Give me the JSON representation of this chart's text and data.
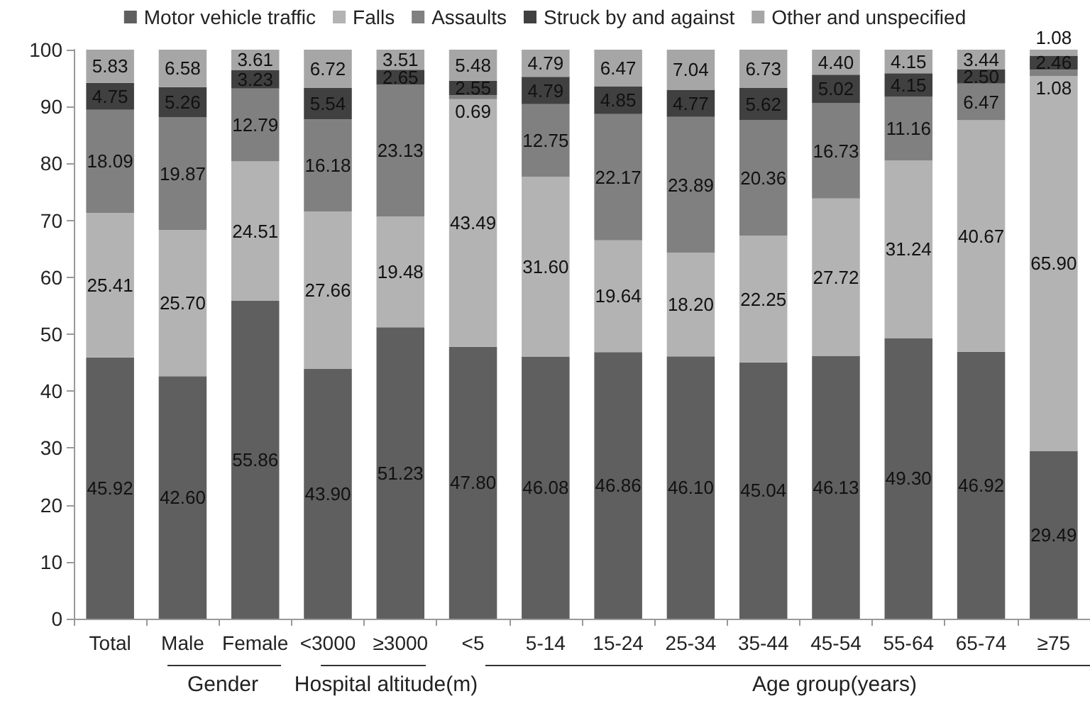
{
  "chart_data": {
    "type": "bar",
    "stacked": true,
    "categories": [
      "Total",
      "Male",
      "Female",
      "<3000",
      "≥3000",
      "<5",
      "5-14",
      "15-24",
      "25-34",
      "35-44",
      "45-54",
      "55-64",
      "65-74",
      "≥75"
    ],
    "series": [
      {
        "name": "Motor vehicle traffic",
        "color": "#5f5f5f",
        "values": [
          45.92,
          42.6,
          55.86,
          43.9,
          51.23,
          47.8,
          46.08,
          46.86,
          46.1,
          45.04,
          46.13,
          49.3,
          46.92,
          29.49
        ],
        "value_labels": [
          "45.92",
          "42.60",
          "55.86",
          "43.90",
          "51.23",
          "47.80",
          "46.08",
          "46.86",
          "46.10",
          "45.04",
          "46.13",
          "49.30",
          "46.92",
          "29.49"
        ]
      },
      {
        "name": "Falls",
        "color": "#b3b3b3",
        "values": [
          25.41,
          25.7,
          24.51,
          27.66,
          19.48,
          43.49,
          31.6,
          19.64,
          18.2,
          22.25,
          27.72,
          31.24,
          40.67,
          65.9
        ],
        "value_labels": [
          "25.41",
          "25.70",
          "24.51",
          "27.66",
          "19.48",
          "43.49",
          "31.60",
          "19.64",
          "18.20",
          "22.25",
          "27.72",
          "31.24",
          "40.67",
          "65.90"
        ]
      },
      {
        "name": "Assaults",
        "color": "#808080",
        "values": [
          18.09,
          19.87,
          12.79,
          16.18,
          23.13,
          0.69,
          12.75,
          22.17,
          23.89,
          20.36,
          16.73,
          11.16,
          6.47,
          1.08
        ],
        "value_labels": [
          "18.09",
          "19.87",
          "12.79",
          "16.18",
          "23.13",
          "0.69",
          "12.75",
          "22.17",
          "23.89",
          "20.36",
          "16.73",
          "11.16",
          "6.47",
          "1.08"
        ]
      },
      {
        "name": "Struck by and against",
        "color": "#404040",
        "values": [
          4.75,
          5.26,
          3.23,
          5.54,
          2.65,
          2.55,
          4.79,
          4.85,
          4.77,
          5.62,
          5.02,
          4.15,
          2.5,
          2.46
        ],
        "value_labels": [
          "4.75",
          "5.26",
          "3.23",
          "5.54",
          "2.65",
          "2.55",
          "4.79",
          "4.85",
          "4.77",
          "5.62",
          "5.02",
          "4.15",
          "2.50",
          "2.46"
        ]
      },
      {
        "name": "Other and unspecified",
        "color": "#a6a6a6",
        "values": [
          5.83,
          6.58,
          3.61,
          6.72,
          3.51,
          5.48,
          4.79,
          6.47,
          7.04,
          6.73,
          4.4,
          4.15,
          3.44,
          1.08
        ],
        "value_labels": [
          "5.83",
          "6.58",
          "3.61",
          "6.72",
          "3.51",
          "5.48",
          "4.79",
          "6.47",
          "7.04",
          "6.73",
          "4.40",
          "4.15",
          "3.44",
          "1.08"
        ]
      }
    ],
    "ylim": [
      0,
      100
    ],
    "yticks": [
      0,
      10,
      20,
      30,
      40,
      50,
      60,
      70,
      80,
      90,
      100
    ],
    "grid": false,
    "legend": "top",
    "annotations": [
      "Gender",
      "Hospital altitude(m)",
      "Age group(years)"
    ]
  }
}
